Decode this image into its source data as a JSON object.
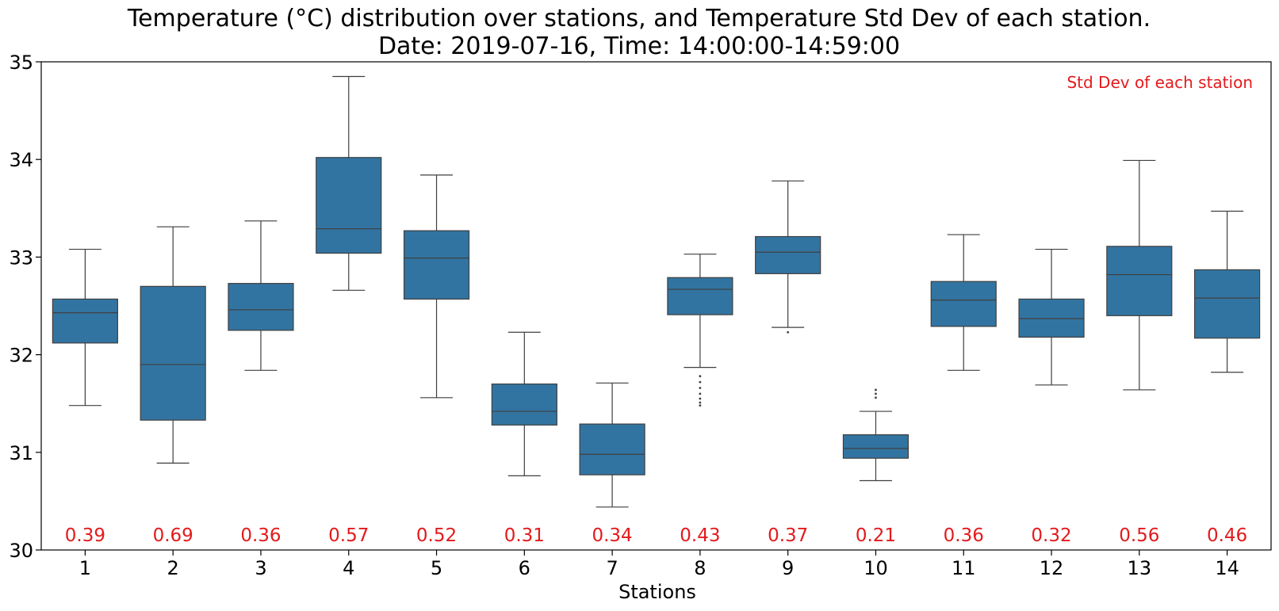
{
  "chart_data": {
    "type": "box",
    "title_line1": "Temperature (°C) distribution over stations, and Temperature Std Dev of each station.",
    "title_line2": "Date: 2019-07-16, Time: 14:00:00-14:59:00",
    "xlabel": "Stations",
    "ylabel": "",
    "ylim": [
      30,
      35
    ],
    "yticks": [
      30,
      31,
      32,
      33,
      34,
      35
    ],
    "categories": [
      "1",
      "2",
      "3",
      "4",
      "5",
      "6",
      "7",
      "8",
      "9",
      "10",
      "11",
      "12",
      "13",
      "14"
    ],
    "box_color": "#3274a1",
    "edge_color": "#3f3f3f",
    "std_color": "#e31a1c",
    "std_note": "Std Dev of each station",
    "std_note_position": "top-right",
    "grid": false,
    "boxes": [
      {
        "station": "1",
        "whislo": 31.48,
        "q1": 32.12,
        "med": 32.43,
        "q3": 32.57,
        "whishi": 33.08,
        "fliers": [],
        "std": "0.39"
      },
      {
        "station": "2",
        "whislo": 30.89,
        "q1": 31.33,
        "med": 31.9,
        "q3": 32.7,
        "whishi": 33.31,
        "fliers": [],
        "std": "0.69"
      },
      {
        "station": "3",
        "whislo": 31.84,
        "q1": 32.25,
        "med": 32.46,
        "q3": 32.73,
        "whishi": 33.37,
        "fliers": [],
        "std": "0.36"
      },
      {
        "station": "4",
        "whislo": 32.66,
        "q1": 33.04,
        "med": 33.29,
        "q3": 34.02,
        "whishi": 34.85,
        "fliers": [],
        "std": "0.57"
      },
      {
        "station": "5",
        "whislo": 31.56,
        "q1": 32.57,
        "med": 32.99,
        "q3": 33.27,
        "whishi": 33.84,
        "fliers": [],
        "std": "0.52"
      },
      {
        "station": "6",
        "whislo": 30.76,
        "q1": 31.28,
        "med": 31.42,
        "q3": 31.7,
        "whishi": 32.23,
        "fliers": [],
        "std": "0.31"
      },
      {
        "station": "7",
        "whislo": 30.44,
        "q1": 30.77,
        "med": 30.98,
        "q3": 31.29,
        "whishi": 31.71,
        "fliers": [],
        "std": "0.34"
      },
      {
        "station": "8",
        "whislo": 31.87,
        "q1": 32.41,
        "med": 32.67,
        "q3": 32.79,
        "whishi": 33.03,
        "fliers": [
          31.78,
          31.72,
          31.66,
          31.6,
          31.55,
          31.51,
          31.48
        ],
        "std": "0.43"
      },
      {
        "station": "9",
        "whislo": 32.28,
        "q1": 32.83,
        "med": 33.05,
        "q3": 33.21,
        "whishi": 33.78,
        "fliers": [
          32.23
        ],
        "std": "0.37"
      },
      {
        "station": "10",
        "whislo": 30.71,
        "q1": 30.94,
        "med": 31.04,
        "q3": 31.18,
        "whishi": 31.42,
        "fliers": [
          31.64,
          31.6,
          31.56
        ],
        "std": "0.21"
      },
      {
        "station": "11",
        "whislo": 31.84,
        "q1": 32.29,
        "med": 32.56,
        "q3": 32.75,
        "whishi": 33.23,
        "fliers": [],
        "std": "0.36"
      },
      {
        "station": "12",
        "whislo": 31.69,
        "q1": 32.18,
        "med": 32.37,
        "q3": 32.57,
        "whishi": 33.08,
        "fliers": [],
        "std": "0.32"
      },
      {
        "station": "13",
        "whislo": 31.64,
        "q1": 32.4,
        "med": 32.82,
        "q3": 33.11,
        "whishi": 33.99,
        "fliers": [],
        "std": "0.56"
      },
      {
        "station": "14",
        "whislo": 31.82,
        "q1": 32.17,
        "med": 32.58,
        "q3": 32.87,
        "whishi": 33.47,
        "fliers": [],
        "std": "0.46"
      }
    ]
  }
}
